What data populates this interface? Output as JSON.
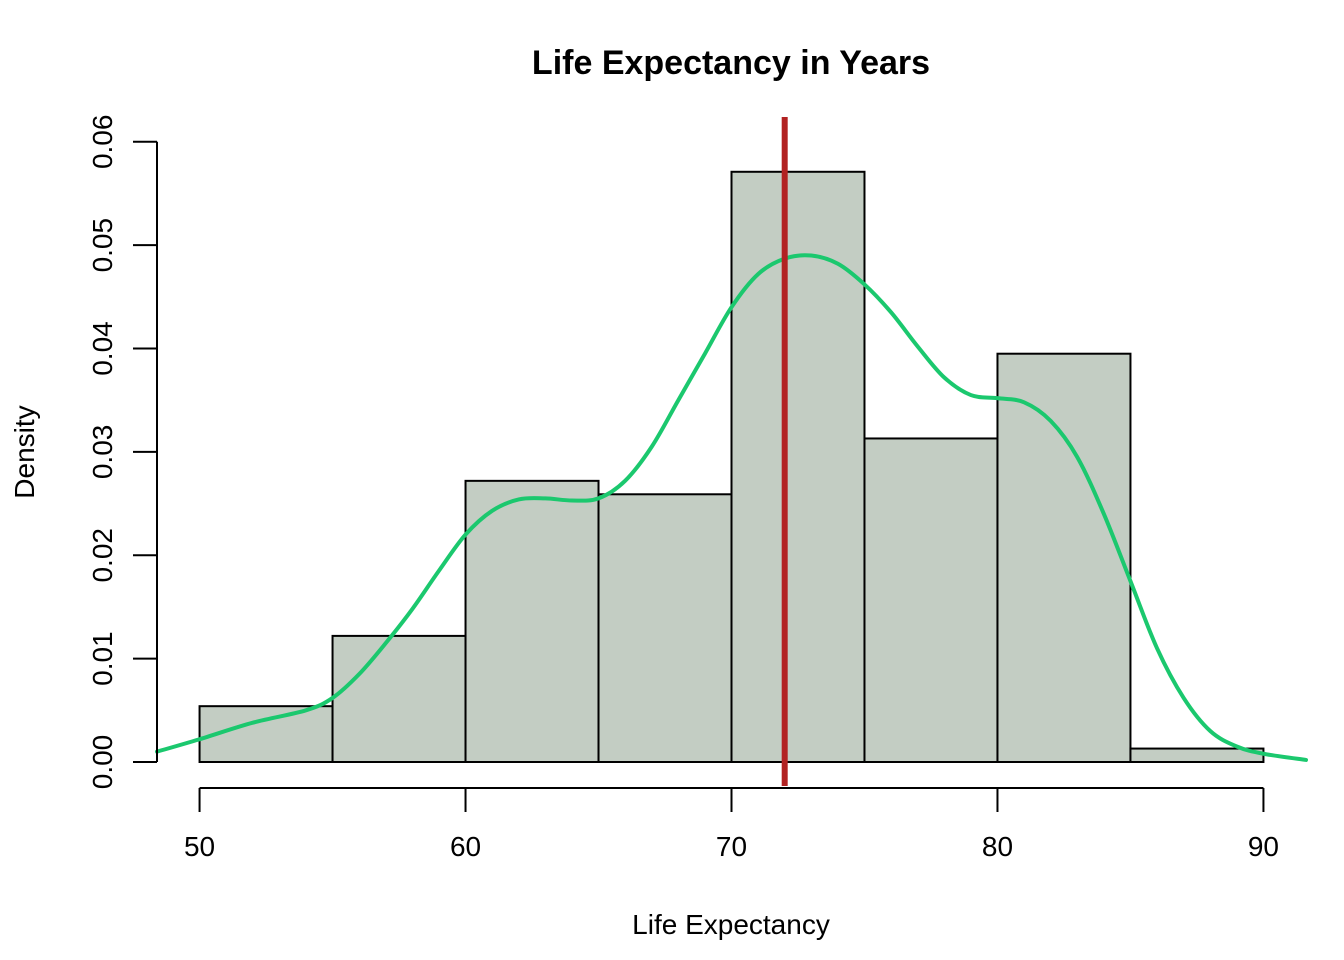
{
  "chart_data": {
    "type": "bar",
    "title": "Life Expectancy in Years",
    "xlabel": "Life Expectancy",
    "ylabel": "Density",
    "xlim": [
      48.4,
      91.6
    ],
    "ylim": [
      0,
      0.0624
    ],
    "x_ticks": [
      "50",
      "60",
      "70",
      "80",
      "90"
    ],
    "x_tick_values": [
      50,
      60,
      70,
      80,
      90
    ],
    "y_ticks": [
      "0.00",
      "0.01",
      "0.02",
      "0.03",
      "0.04",
      "0.05",
      "0.06"
    ],
    "y_tick_values": [
      0,
      0.01,
      0.02,
      0.03,
      0.04,
      0.05,
      0.06
    ],
    "bins": [
      {
        "from": 50,
        "to": 55,
        "density": 0.0054
      },
      {
        "from": 55,
        "to": 60,
        "density": 0.0122
      },
      {
        "from": 60,
        "to": 65,
        "density": 0.0272
      },
      {
        "from": 65,
        "to": 70,
        "density": 0.0259
      },
      {
        "from": 70,
        "to": 75,
        "density": 0.0571
      },
      {
        "from": 75,
        "to": 80,
        "density": 0.0313
      },
      {
        "from": 80,
        "to": 85,
        "density": 0.0395
      },
      {
        "from": 85,
        "to": 90,
        "density": 0.0013
      }
    ],
    "density_curve": {
      "x": [
        48.4,
        50,
        52,
        54,
        55,
        56,
        57,
        58,
        59,
        60,
        61,
        62,
        63,
        64,
        65,
        66,
        67,
        68,
        69,
        70,
        71,
        72,
        73,
        74,
        75,
        76,
        77,
        78,
        79,
        80,
        81,
        82,
        83,
        84,
        85,
        86,
        87,
        88,
        89,
        90,
        91.6
      ],
      "y": [
        0.001,
        0.0022,
        0.0038,
        0.005,
        0.0062,
        0.0085,
        0.0115,
        0.0148,
        0.0185,
        0.022,
        0.0243,
        0.0254,
        0.0255,
        0.0253,
        0.0255,
        0.0272,
        0.0305,
        0.035,
        0.0395,
        0.044,
        0.0472,
        0.0487,
        0.049,
        0.0482,
        0.0462,
        0.0435,
        0.0402,
        0.0372,
        0.0355,
        0.0352,
        0.0348,
        0.033,
        0.0295,
        0.024,
        0.0175,
        0.011,
        0.0062,
        0.003,
        0.0015,
        0.0008,
        0.0002
      ]
    },
    "mean_line": {
      "x": 72
    },
    "colors": {
      "bar_fill": "#c3cdc3",
      "bar_border": "#000000",
      "curve": "#1bc86e",
      "mean_line": "#b22222"
    },
    "grid": false,
    "legend": "none"
  }
}
